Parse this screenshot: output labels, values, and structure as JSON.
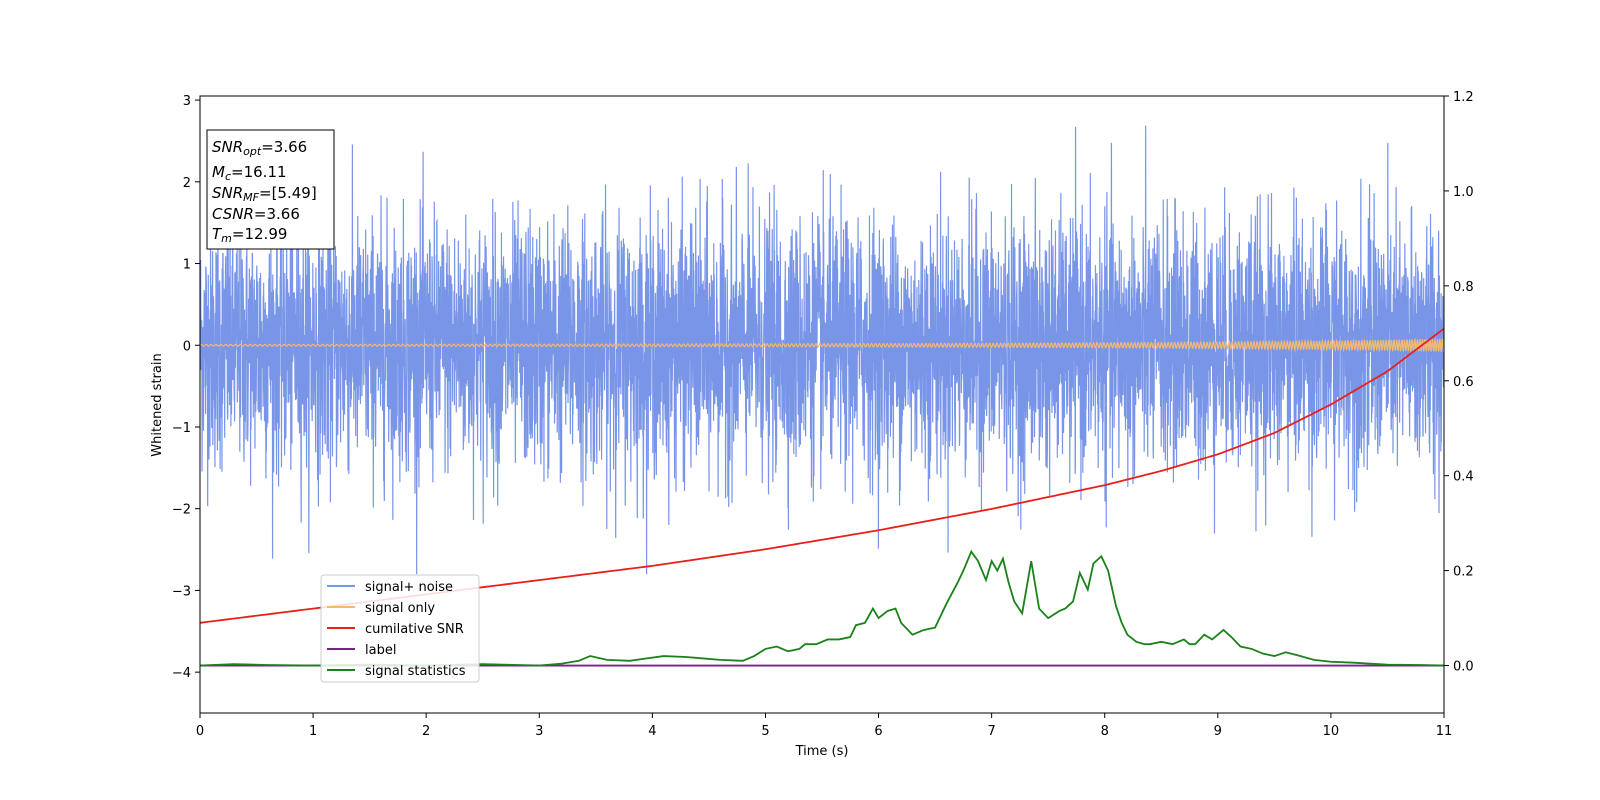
{
  "chart_data": {
    "type": "line",
    "xlabel": "Time (s)",
    "ylabel": "Whitened strain",
    "xlim": [
      0,
      11
    ],
    "ylim": [
      -4.5,
      3.05
    ],
    "y2lim": [
      -0.1,
      1.2
    ],
    "x_ticks": [
      "0",
      "1",
      "2",
      "3",
      "4",
      "5",
      "6",
      "7",
      "8",
      "9",
      "10",
      "11"
    ],
    "y_ticks": [
      "3",
      "2",
      "1",
      "0",
      "−1",
      "−2",
      "−3",
      "−4"
    ],
    "y2_ticks": [
      "1.2",
      "1.0",
      "0.8",
      "0.6",
      "0.4",
      "0.2",
      "0.0"
    ],
    "grid": false,
    "legend_position": "lower-left",
    "series": [
      {
        "name": "signal+ noise",
        "color": "#7895e8",
        "axis": "left",
        "description_values": "whitened noisy strain, approx. spanning -2.8 to 2.7 over 0-11 s",
        "envelope": [
          -2.8,
          2.7
        ]
      },
      {
        "name": "signal only",
        "color": "#f5b96e",
        "axis": "left",
        "x": [
          0,
          2,
          4,
          6,
          8,
          9,
          10,
          10.5,
          11
        ],
        "amplitude": [
          0.01,
          0.012,
          0.015,
          0.02,
          0.03,
          0.04,
          0.055,
          0.065,
          0.08
        ]
      },
      {
        "name": "cumilative SNR",
        "color": "#e8201a",
        "axis": "right",
        "x": [
          0,
          1,
          2,
          3,
          4,
          5,
          6,
          7,
          7.5,
          8,
          8.5,
          9,
          9.5,
          10,
          10.5,
          11
        ],
        "values": [
          0.09,
          0.12,
          0.15,
          0.18,
          0.21,
          0.245,
          0.285,
          0.33,
          0.355,
          0.38,
          0.41,
          0.445,
          0.49,
          0.55,
          0.62,
          0.71
        ]
      },
      {
        "name": "label",
        "color": "#7b1e88",
        "axis": "right",
        "x": [
          0,
          11
        ],
        "values": [
          0.0,
          0.0
        ]
      },
      {
        "name": "signal statistics",
        "color": "#1a821a",
        "axis": "right",
        "x": [
          0,
          0.3,
          0.6,
          1.0,
          1.5,
          2.0,
          2.5,
          3.0,
          3.2,
          3.35,
          3.45,
          3.6,
          3.8,
          3.95,
          4.1,
          4.3,
          4.45,
          4.6,
          4.8,
          4.9,
          5.0,
          5.1,
          5.2,
          5.3,
          5.35,
          5.45,
          5.55,
          5.65,
          5.75,
          5.8,
          5.88,
          5.95,
          6.0,
          6.08,
          6.15,
          6.2,
          6.3,
          6.4,
          6.5,
          6.6,
          6.7,
          6.75,
          6.82,
          6.88,
          6.95,
          7.0,
          7.05,
          7.1,
          7.15,
          7.2,
          7.27,
          7.35,
          7.42,
          7.5,
          7.6,
          7.65,
          7.72,
          7.78,
          7.85,
          7.9,
          7.97,
          8.03,
          8.1,
          8.15,
          8.2,
          8.28,
          8.35,
          8.4,
          8.5,
          8.6,
          8.7,
          8.75,
          8.8,
          8.88,
          8.95,
          9.0,
          9.05,
          9.12,
          9.2,
          9.3,
          9.4,
          9.5,
          9.6,
          9.7,
          9.85,
          10.0,
          10.2,
          10.5,
          10.8,
          11.0
        ],
        "values": [
          0.0,
          0.003,
          0.001,
          0.0,
          0.002,
          0.0,
          0.003,
          0.0,
          0.004,
          0.01,
          0.02,
          0.012,
          0.01,
          0.015,
          0.02,
          0.018,
          0.015,
          0.012,
          0.01,
          0.02,
          0.035,
          0.04,
          0.03,
          0.035,
          0.045,
          0.045,
          0.055,
          0.055,
          0.06,
          0.085,
          0.09,
          0.12,
          0.1,
          0.115,
          0.12,
          0.09,
          0.065,
          0.075,
          0.08,
          0.13,
          0.175,
          0.2,
          0.24,
          0.22,
          0.18,
          0.22,
          0.2,
          0.225,
          0.175,
          0.135,
          0.11,
          0.22,
          0.12,
          0.1,
          0.115,
          0.12,
          0.135,
          0.195,
          0.16,
          0.215,
          0.23,
          0.2,
          0.125,
          0.09,
          0.065,
          0.05,
          0.045,
          0.045,
          0.05,
          0.045,
          0.055,
          0.045,
          0.045,
          0.065,
          0.055,
          0.065,
          0.075,
          0.06,
          0.04,
          0.035,
          0.025,
          0.02,
          0.028,
          0.022,
          0.012,
          0.008,
          0.006,
          0.002,
          0.001,
          0.0
        ]
      }
    ],
    "info_box": {
      "lines": [
        {
          "sym": "SNR",
          "sub": "opt",
          "val": "=3.66"
        },
        {
          "sym": "M",
          "sub": "c",
          "val": "=16.11"
        },
        {
          "sym": "SNR",
          "sub": "MF",
          "val": "=[5.49]"
        },
        {
          "sym": "CSNR",
          "sub": "",
          "val": "=3.66"
        },
        {
          "sym": "T",
          "sub": "m",
          "val": "=12.99"
        }
      ]
    }
  }
}
